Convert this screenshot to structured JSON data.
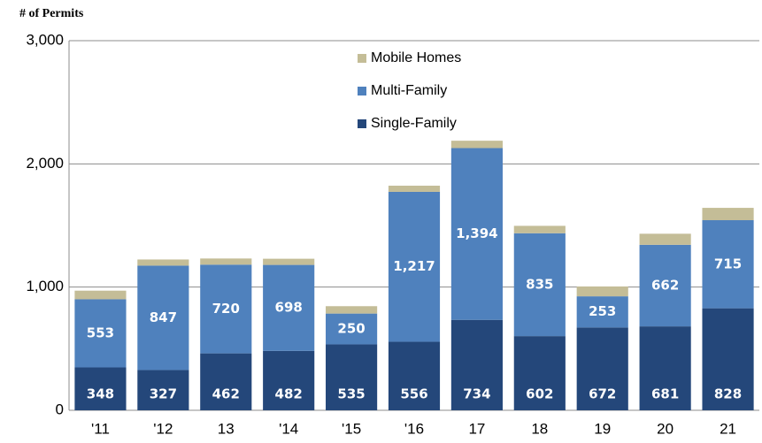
{
  "chart_data": {
    "type": "stacked_bar",
    "title": "# of Permits",
    "categories": [
      "'11",
      "'12",
      "13",
      "'14",
      "'15",
      "'16",
      "17",
      "18",
      "19",
      "20",
      "21"
    ],
    "series": [
      {
        "name": "Single-Family",
        "color": "#24477a",
        "values": [
          348,
          327,
          462,
          482,
          535,
          556,
          734,
          602,
          672,
          681,
          828
        ]
      },
      {
        "name": "Multi-Family",
        "color": "#4f81bd",
        "values": [
          553,
          847,
          720,
          698,
          250,
          1217,
          1394,
          835,
          253,
          662,
          715
        ],
        "value_labels": [
          "553",
          "847",
          "720",
          "698",
          "250",
          "1,217",
          "1,394",
          "835",
          "253",
          "662",
          "715"
        ]
      },
      {
        "name": "Mobile Homes",
        "color": "#c4bd97",
        "values": [
          70,
          50,
          50,
          50,
          60,
          50,
          60,
          60,
          80,
          90,
          100
        ]
      }
    ],
    "ylim": [
      0,
      3000
    ],
    "yticks": [
      0,
      {
        "value": 1000,
        "label": "1,000"
      },
      {
        "value": 2000,
        "label": "2,000"
      },
      {
        "value": 3000,
        "label": "3,000"
      }
    ],
    "grid": true
  }
}
